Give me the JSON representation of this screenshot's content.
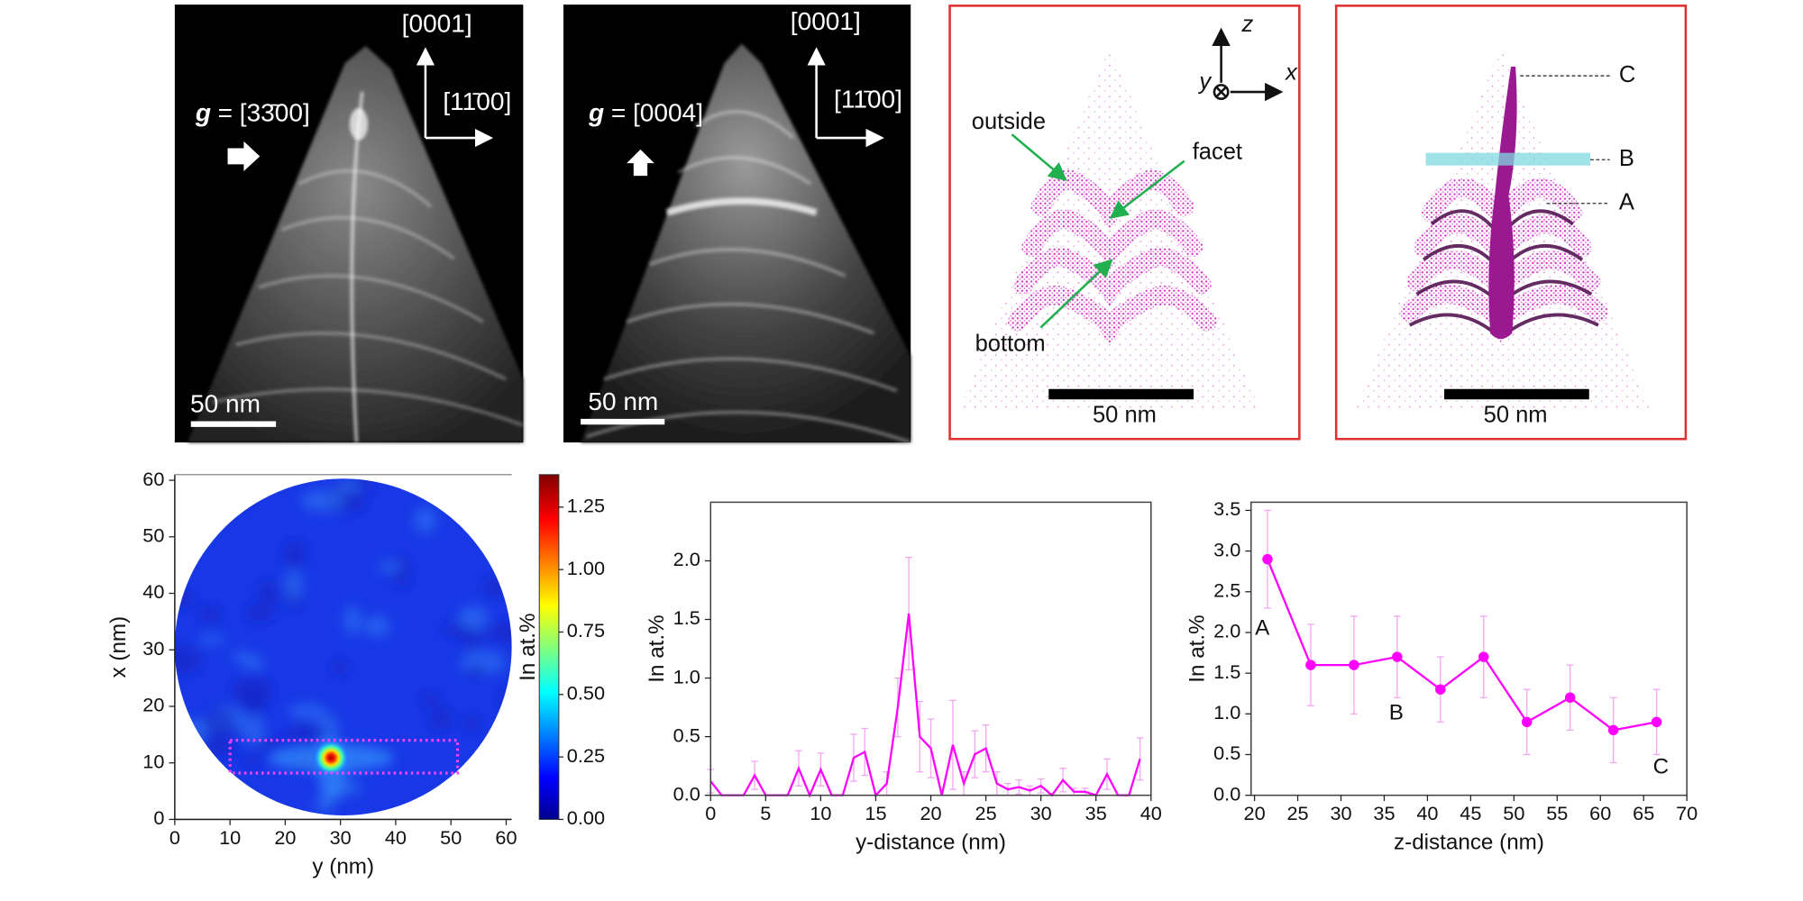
{
  "panels": [
    {
      "arrow_up": "[0001]",
      "arrow_right": "[11̄00]",
      "g_symbol": "g",
      "g_value": "= [33̄00]",
      "scale_bar": "50 nm"
    },
    {
      "arrow_up": "[0001]",
      "arrow_right": "[11̄00]",
      "g_symbol": "g",
      "g_value": "= [0004]",
      "scale_bar": "50 nm"
    },
    {
      "axes": [
        "z",
        "x",
        "y"
      ],
      "labels": [
        "outside",
        "facet",
        "bottom"
      ],
      "scale_bar": "50 nm"
    },
    {
      "labels": [
        "C",
        "B",
        "A"
      ],
      "scale_bar": "50 nm"
    }
  ],
  "chart_data": [
    {
      "type": "heatmap",
      "xlabel": "y (nm)",
      "ylabel": "x (nm)",
      "colorbar_label": "In at.%",
      "xlim": [
        0,
        61
      ],
      "ylim": [
        0,
        61
      ],
      "xticks": [
        0,
        10,
        20,
        30,
        40,
        50,
        60
      ],
      "yticks": [
        0,
        10,
        20,
        30,
        40,
        50,
        60
      ],
      "clim": [
        0,
        1.38
      ],
      "cticks": [
        {
          "value": 0,
          "label": "0.00"
        },
        {
          "value": 0.25,
          "label": "0.25"
        },
        {
          "value": 0.5,
          "label": "0.50"
        },
        {
          "value": 0.75,
          "label": "0.75"
        },
        {
          "value": 1.0,
          "label": "1.00"
        },
        {
          "value": 1.25,
          "label": "1.25"
        }
      ],
      "hotspot": [
        28.3,
        10.9
      ],
      "box": {
        "h": [
          10,
          51.2
        ],
        "v": [
          8.2,
          14
        ]
      },
      "box_color": "#ff40ff"
    },
    {
      "type": "line",
      "xlabel": "y-distance (nm)",
      "ylabel": "In at.%",
      "color": "#ff00ff",
      "error_color": "#f2a6f2",
      "markers": false,
      "xlim": [
        0,
        40
      ],
      "ylim": [
        0,
        2.5
      ],
      "xticks": [
        0,
        5,
        10,
        15,
        20,
        25,
        30,
        35,
        40
      ],
      "yticks": [
        {
          "value": 0,
          "label": "0.0"
        },
        {
          "value": 0.5,
          "label": "0.5"
        },
        {
          "value": 1.0,
          "label": "1.0"
        },
        {
          "value": 1.5,
          "label": "1.5"
        },
        {
          "value": 2.0,
          "label": "2.0"
        }
      ],
      "x": [
        0,
        1,
        2,
        3,
        4,
        5,
        6,
        7,
        8,
        9,
        10,
        11,
        12,
        13,
        14,
        15,
        16,
        17,
        18,
        19,
        20,
        21,
        22,
        23,
        24,
        25,
        26,
        27,
        28,
        29,
        30,
        31,
        32,
        33,
        34,
        35,
        36,
        37,
        38,
        39
      ],
      "values": [
        0.12,
        0,
        0,
        0,
        0.17,
        0,
        0,
        0,
        0.23,
        0,
        0.22,
        0,
        0,
        0.32,
        0.37,
        0,
        0.1,
        0.75,
        1.55,
        0.5,
        0.4,
        0,
        0.43,
        0.1,
        0.35,
        0.4,
        0.1,
        0.05,
        0.07,
        0.04,
        0.08,
        0,
        0.13,
        0.03,
        0.03,
        0,
        0.18,
        0,
        0,
        0.31
      ],
      "errors": [
        0.1,
        0,
        0,
        0,
        0.12,
        0,
        0,
        0,
        0.15,
        0,
        0.14,
        0,
        0,
        0.2,
        0.2,
        0,
        0.1,
        0.25,
        0.48,
        0.3,
        0.25,
        0,
        0.38,
        0.1,
        0.2,
        0.2,
        0.1,
        0.05,
        0.06,
        0.04,
        0.06,
        0,
        0.1,
        0.03,
        0.03,
        0,
        0.13,
        0,
        0,
        0.18
      ]
    },
    {
      "type": "line",
      "xlabel": "z-distance (nm)",
      "ylabel": "In at.%",
      "color": "#ff00ff",
      "error_color": "#f2a6f2",
      "markers": true,
      "xlim": [
        19.6,
        70
      ],
      "ylim": [
        0,
        3.6
      ],
      "xticks": [
        20,
        25,
        30,
        35,
        40,
        45,
        50,
        55,
        60,
        65,
        70
      ],
      "yticks": [
        {
          "value": 0,
          "label": "0.0"
        },
        {
          "value": 0.5,
          "label": "0.5"
        },
        {
          "value": 1.0,
          "label": "1.0"
        },
        {
          "value": 1.5,
          "label": "1.5"
        },
        {
          "value": 2.0,
          "label": "2.0"
        },
        {
          "value": 2.5,
          "label": "2.5"
        },
        {
          "value": 3.0,
          "label": "3.0"
        },
        {
          "value": 3.5,
          "label": "3.5"
        }
      ],
      "x": [
        21.5,
        26.5,
        31.5,
        36.5,
        41.5,
        46.5,
        51.5,
        56.5,
        61.5,
        66.5
      ],
      "values": [
        2.9,
        1.6,
        1.6,
        1.7,
        1.3,
        1.7,
        0.9,
        1.2,
        0.8,
        0.9
      ],
      "errors": [
        0.6,
        0.5,
        0.6,
        0.5,
        0.4,
        0.5,
        0.4,
        0.4,
        0.4,
        0.4
      ],
      "annotations": [
        {
          "text": "A",
          "x": 20.9,
          "y": 2.04
        },
        {
          "text": "B",
          "x": 36.4,
          "y": 1.0
        },
        {
          "text": "C",
          "x": 67,
          "y": 0.34
        }
      ]
    }
  ]
}
